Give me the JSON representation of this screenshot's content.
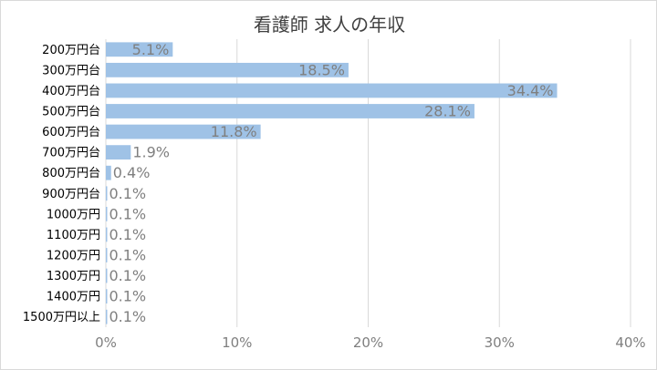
{
  "chart_data": {
    "type": "bar",
    "orientation": "horizontal",
    "title": "看護師 求人の年収",
    "categories": [
      "200万円台",
      "300万円台",
      "400万円台",
      "500万円台",
      "600万円台",
      "700万円台",
      "800万円台",
      "900万円台",
      "1000万円",
      "1100万円",
      "1200万円",
      "1300万円",
      "1400万円",
      "1500万円以上"
    ],
    "values": [
      5.1,
      18.5,
      34.4,
      28.1,
      11.8,
      1.9,
      0.4,
      0.1,
      0.1,
      0.1,
      0.1,
      0.1,
      0.1,
      0.1
    ],
    "value_labels": [
      "5.1%",
      "18.5%",
      "34.4%",
      "28.1%",
      "11.8%",
      "1.9%",
      "0.4%",
      "0.1%",
      "0.1%",
      "0.1%",
      "0.1%",
      "0.1%",
      "0.1%",
      "0.1%"
    ],
    "xlim": [
      0,
      40
    ],
    "x_ticks": [
      0,
      10,
      20,
      30,
      40
    ],
    "x_tick_labels": [
      "0%",
      "10%",
      "20%",
      "30%",
      "40%"
    ],
    "xlabel": "",
    "ylabel": "",
    "grid": "vertical",
    "legend": "none",
    "bar_color": "#9fc2e6"
  }
}
